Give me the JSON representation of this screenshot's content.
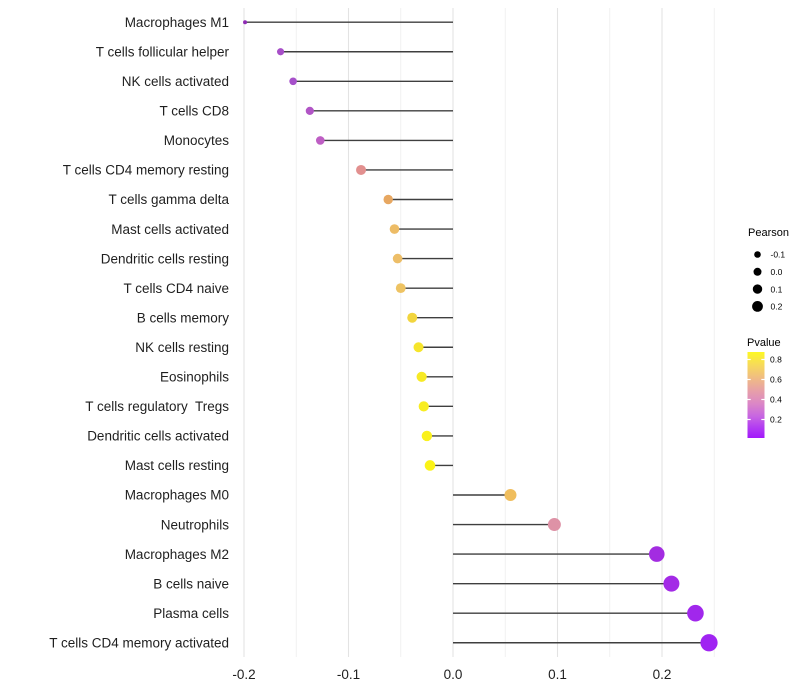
{
  "chart_data": {
    "type": "lollipop",
    "title": "",
    "xlabel": "",
    "ylabel": "",
    "grid": true,
    "background": "#ffffff",
    "stem_color": "#3f3f3f",
    "major_grid_color": "#e3e3e3",
    "minor_grid_color": "#f0f0f0",
    "x_major_ticks": [
      -0.2,
      -0.1,
      0.0,
      0.1,
      0.2
    ],
    "x_major_labels": [
      "-0.2",
      "-0.1",
      "0.0",
      "0.1",
      "0.2"
    ],
    "x_minor_ticks": [
      -0.15,
      -0.05,
      0.05,
      0.15,
      0.25
    ],
    "xlim": [
      -0.209,
      0.272
    ],
    "points": [
      {
        "label": "Macrophages M1",
        "pearson": -0.199,
        "pvalue_approx": 0.1,
        "color": "#8e2bb4",
        "radius": 2.0
      },
      {
        "label": "T cells follicular helper",
        "pearson": -0.165,
        "pvalue_approx": 0.17,
        "color": "#a74fc8",
        "radius": 3.6
      },
      {
        "label": "NK cells activated",
        "pearson": -0.153,
        "pvalue_approx": 0.17,
        "color": "#a650ca",
        "radius": 3.8
      },
      {
        "label": "T cells CD8",
        "pearson": -0.137,
        "pvalue_approx": 0.2,
        "color": "#b155c6",
        "radius": 4.1
      },
      {
        "label": "Monocytes",
        "pearson": -0.127,
        "pvalue_approx": 0.24,
        "color": "#be5ec4",
        "radius": 4.3
      },
      {
        "label": "T cells CD4 memory resting",
        "pearson": -0.088,
        "pvalue_approx": 0.42,
        "color": "#e2908f",
        "radius": 5.0
      },
      {
        "label": "T cells gamma delta",
        "pearson": -0.062,
        "pvalue_approx": 0.55,
        "color": "#e7a761",
        "radius": 4.7
      },
      {
        "label": "Mast cells activated",
        "pearson": -0.056,
        "pvalue_approx": 0.62,
        "color": "#edbc66",
        "radius": 4.8
      },
      {
        "label": "Dendritic cells resting",
        "pearson": -0.053,
        "pvalue_approx": 0.63,
        "color": "#edbe68",
        "radius": 4.8
      },
      {
        "label": "T cells CD4 naive",
        "pearson": -0.05,
        "pvalue_approx": 0.65,
        "color": "#eec363",
        "radius": 4.9
      },
      {
        "label": "B cells memory",
        "pearson": -0.039,
        "pvalue_approx": 0.73,
        "color": "#f2d53e",
        "radius": 5.0
      },
      {
        "label": "NK cells resting",
        "pearson": -0.033,
        "pvalue_approx": 0.79,
        "color": "#f6e52b",
        "radius": 5.0
      },
      {
        "label": "Eosinophils",
        "pearson": -0.03,
        "pvalue_approx": 0.81,
        "color": "#f7ea25",
        "radius": 5.1
      },
      {
        "label": "T cells regulatory  Tregs",
        "pearson": -0.028,
        "pvalue_approx": 0.82,
        "color": "#f8ed22",
        "radius": 5.1
      },
      {
        "label": "Dendritic cells activated",
        "pearson": -0.025,
        "pvalue_approx": 0.84,
        "color": "#faf11d",
        "radius": 5.2
      },
      {
        "label": "Mast cells resting",
        "pearson": -0.022,
        "pvalue_approx": 0.86,
        "color": "#fbf317",
        "radius": 5.3
      },
      {
        "label": "Macrophages M0",
        "pearson": 0.055,
        "pvalue_approx": 0.64,
        "color": "#f0be5e",
        "radius": 6.0
      },
      {
        "label": "Neutrophils",
        "pearson": 0.097,
        "pvalue_approx": 0.4,
        "color": "#de92a6",
        "radius": 6.5
      },
      {
        "label": "Macrophages M2",
        "pearson": 0.195,
        "pvalue_approx": 0.07,
        "color": "#a32ce1",
        "radius": 7.8
      },
      {
        "label": "B cells naive",
        "pearson": 0.209,
        "pvalue_approx": 0.06,
        "color": "#a32ae6",
        "radius": 8.0
      },
      {
        "label": "Plasma cells",
        "pearson": 0.232,
        "pvalue_approx": 0.04,
        "color": "#a127ec",
        "radius": 8.3
      },
      {
        "label": "T cells CD4 memory activated",
        "pearson": 0.245,
        "pvalue_approx": 0.03,
        "color": "#a024f2",
        "radius": 8.6
      }
    ],
    "legend_size": {
      "title": "Pearson",
      "dot_color": "#000000",
      "entries": [
        {
          "label": "-0.1",
          "radius": 3.3
        },
        {
          "label": "0.0",
          "radius": 4.0
        },
        {
          "label": "0.1",
          "radius": 4.7
        },
        {
          "label": "0.2",
          "radius": 5.4
        }
      ]
    },
    "legend_color": {
      "title": "Pvalue",
      "tick_labels": [
        "0.8",
        "0.6",
        "0.4",
        "0.2"
      ],
      "tick_values": [
        0.8,
        0.6,
        0.4,
        0.2
      ],
      "gradient": [
        {
          "pos": 0.0,
          "color": "#fdf824"
        },
        {
          "pos": 0.15,
          "color": "#f7da5a"
        },
        {
          "pos": 0.3,
          "color": "#f0bc83"
        },
        {
          "pos": 0.45,
          "color": "#e7a0a8"
        },
        {
          "pos": 0.6,
          "color": "#db87c6"
        },
        {
          "pos": 0.75,
          "color": "#c765e2"
        },
        {
          "pos": 0.88,
          "color": "#b23cf2"
        },
        {
          "pos": 1.0,
          "color": "#a218fb"
        }
      ]
    }
  }
}
